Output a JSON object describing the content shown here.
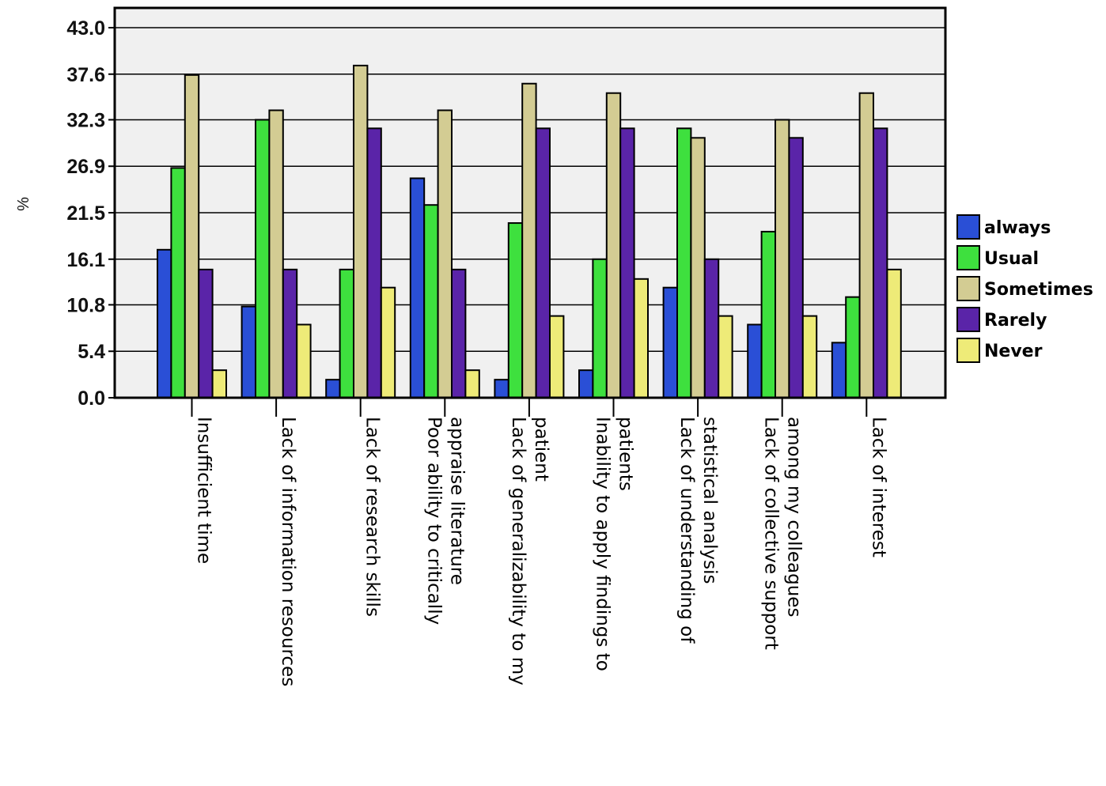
{
  "chart_data": {
    "type": "bar",
    "title": "",
    "ylabel": "%",
    "xlabel": "",
    "ylim": [
      0,
      43.0
    ],
    "yticks": [
      "0.0",
      "5.4",
      "10.8",
      "16.1",
      "21.5",
      "26.9",
      "32.3",
      "37.6",
      "43.0"
    ],
    "grid": true,
    "legend_position": "right",
    "categories": [
      [
        "Insufficient time"
      ],
      [
        "Lack of information resources"
      ],
      [
        "Lack of research skills"
      ],
      [
        "Poor ability to critically",
        "appraise literature"
      ],
      [
        "Lack of generalizability to my",
        "patient"
      ],
      [
        "Inability to apply findings to",
        "patients"
      ],
      [
        "Lack of understanding of",
        "statistical analysis"
      ],
      [
        "Lack of collective support",
        "among my colleagues"
      ],
      [
        "Lack of interest"
      ]
    ],
    "series": [
      {
        "name": "always",
        "color": "#2a4fd6",
        "values": [
          17.2,
          10.6,
          2.1,
          25.5,
          2.1,
          3.2,
          12.8,
          8.5,
          6.4
        ]
      },
      {
        "name": "Usual",
        "color": "#3ee03e",
        "values": [
          26.7,
          32.3,
          14.9,
          22.4,
          20.3,
          16.1,
          31.3,
          19.3,
          11.7
        ]
      },
      {
        "name": "Sometimes",
        "color": "#d3cc93",
        "values": [
          37.5,
          33.4,
          38.6,
          33.4,
          36.5,
          35.4,
          30.2,
          32.3,
          35.4
        ]
      },
      {
        "name": "Rarely",
        "color": "#5a24a8",
        "values": [
          14.9,
          14.9,
          31.3,
          14.9,
          31.3,
          31.3,
          16.1,
          30.2,
          31.3
        ]
      },
      {
        "name": "Never",
        "color": "#eeeb78",
        "values": [
          3.2,
          8.5,
          12.8,
          3.2,
          9.5,
          13.8,
          9.5,
          9.5,
          14.9
        ]
      }
    ]
  }
}
